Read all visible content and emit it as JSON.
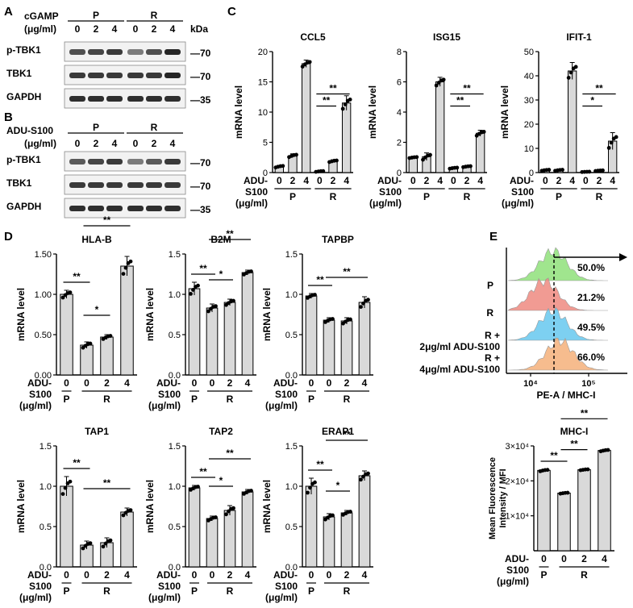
{
  "colors": {
    "bar": "#d9d9d9",
    "blot_bg": "#f2f2f2",
    "band": "#1a1a1a",
    "hist_P": "#8fe07a",
    "hist_R": "#ef8a80",
    "hist_R2": "#66c8ee",
    "hist_R4": "#f5b07a"
  },
  "panel_letters": {
    "A": "A",
    "B": "B",
    "C": "C",
    "D": "D",
    "E": "E"
  },
  "blot_A": {
    "treatment": "cGAMP",
    "unit": "(μg/ml)",
    "kda": "kDa",
    "groups": [
      "P",
      "R"
    ],
    "doses": [
      "0",
      "2",
      "4",
      "0",
      "2",
      "4"
    ],
    "rows": [
      {
        "name": "p-TBK1",
        "marker": "70",
        "intensity": [
          0.75,
          0.8,
          0.85,
          0.55,
          0.75,
          0.95
        ]
      },
      {
        "name": "TBK1",
        "marker": "70",
        "intensity": [
          0.85,
          0.85,
          0.85,
          0.85,
          0.85,
          0.95
        ]
      },
      {
        "name": "GAPDH",
        "marker": "35",
        "intensity": [
          0.9,
          0.9,
          0.9,
          0.9,
          0.9,
          0.9
        ]
      }
    ]
  },
  "blot_B": {
    "treatment": "ADU-S100",
    "unit": "(μg/ml)",
    "groups": [
      "P",
      "R"
    ],
    "doses": [
      "0",
      "2",
      "4",
      "0",
      "2",
      "4"
    ],
    "rows": [
      {
        "name": "p-TBK1",
        "marker": "70",
        "intensity": [
          0.7,
          0.8,
          0.85,
          0.55,
          0.7,
          0.85
        ]
      },
      {
        "name": "TBK1",
        "marker": "70",
        "intensity": [
          0.85,
          0.85,
          0.85,
          0.85,
          0.85,
          0.85
        ]
      },
      {
        "name": "GAPDH",
        "marker": "35",
        "intensity": [
          0.9,
          0.9,
          0.9,
          0.9,
          0.9,
          0.9
        ]
      }
    ]
  },
  "axis_common": {
    "ylabel": "mRNA level",
    "x_prefix": "ADU-",
    "x_prefix2": "S100",
    "x_unit": "(μg/ml)",
    "doses4": [
      "0",
      "0",
      "2",
      "4"
    ],
    "doses6": [
      "0",
      "2",
      "4",
      "0",
      "2",
      "4"
    ],
    "group_P": "P",
    "group_R": "R"
  },
  "chart_data": [
    {
      "type": "bar",
      "title": "CCL5",
      "categories": [
        "P 0",
        "P 2",
        "P 4",
        "R 0",
        "R 2",
        "R 4"
      ],
      "values": [
        1.0,
        2.8,
        18.0,
        0.2,
        1.9,
        11.5
      ],
      "errors": [
        0.2,
        0.3,
        0.6,
        0.1,
        0.2,
        1.2
      ],
      "ylim": [
        0,
        20
      ],
      "yticks": [
        "0",
        "5",
        "10",
        "15",
        "20"
      ],
      "sig": [
        {
          "from": 3,
          "to": 5,
          "label": "**"
        },
        {
          "from": 3,
          "to": 4,
          "label": "**"
        }
      ]
    },
    {
      "type": "bar",
      "title": "ISG15",
      "categories": [
        "P 0",
        "P 2",
        "P 4",
        "R 0",
        "R 2",
        "R 4"
      ],
      "values": [
        1.0,
        1.05,
        6.0,
        0.3,
        0.4,
        2.6
      ],
      "errors": [
        0.05,
        0.25,
        0.3,
        0.05,
        0.05,
        0.2
      ],
      "ylim": [
        0,
        8
      ],
      "yticks": [
        "0",
        "2",
        "4",
        "6",
        "8"
      ],
      "sig": [
        {
          "from": 3,
          "to": 5,
          "label": "**"
        },
        {
          "from": 3,
          "to": 4,
          "label": "**"
        }
      ]
    },
    {
      "type": "bar",
      "title": "IFIT-1",
      "categories": [
        "P 0",
        "P 2",
        "P 4",
        "R 0",
        "R 2",
        "R 4"
      ],
      "values": [
        1.0,
        1.0,
        42.0,
        0.3,
        0.8,
        13.0
      ],
      "errors": [
        0.3,
        0.3,
        3.5,
        0.1,
        0.2,
        3.5
      ],
      "ylim": [
        0,
        50
      ],
      "yticks": [
        "0",
        "10",
        "20",
        "30",
        "40",
        "50"
      ],
      "sig": [
        {
          "from": 3,
          "to": 5,
          "label": "**"
        },
        {
          "from": 3,
          "to": 4,
          "label": "*"
        }
      ]
    },
    {
      "type": "bar",
      "title": "HLA-B",
      "categories": [
        "P 0",
        "R 0",
        "R 2",
        "R 4"
      ],
      "values": [
        1.0,
        0.37,
        0.47,
        1.35
      ],
      "errors": [
        0.05,
        0.04,
        0.03,
        0.12
      ],
      "ylim": [
        0,
        1.5
      ],
      "yticks": [
        "0.00",
        "0.50",
        "1.00",
        "1.50"
      ],
      "sig": [
        {
          "from": 0,
          "to": 1,
          "label": "**"
        },
        {
          "from": 1,
          "to": 2,
          "label": "*"
        },
        {
          "from": 1,
          "to": 3,
          "label": "**"
        }
      ]
    },
    {
      "type": "bar",
      "title": "B2M",
      "categories": [
        "P 0",
        "R 0",
        "R 2",
        "R 4"
      ],
      "values": [
        1.07,
        0.83,
        0.9,
        1.27
      ],
      "errors": [
        0.08,
        0.05,
        0.04,
        0.03
      ],
      "ylim": [
        0,
        1.5
      ],
      "yticks": [
        "0.0",
        "0.5",
        "1.0",
        "1.5"
      ],
      "sig": [
        {
          "from": 0,
          "to": 1,
          "label": "**"
        },
        {
          "from": 1,
          "to": 2,
          "label": "*"
        },
        {
          "from": 1,
          "to": 3,
          "label": "**"
        }
      ]
    },
    {
      "type": "bar",
      "title": "TAPBP",
      "categories": [
        "P 0",
        "R 0",
        "R 2",
        "R 4"
      ],
      "values": [
        0.98,
        0.68,
        0.67,
        0.9
      ],
      "errors": [
        0.03,
        0.03,
        0.04,
        0.07
      ],
      "ylim": [
        0,
        1.5
      ],
      "yticks": [
        "0.0",
        "0.5",
        "1.0",
        "1.5"
      ],
      "sig": [
        {
          "from": 0,
          "to": 1,
          "label": "**"
        },
        {
          "from": 1,
          "to": 3,
          "label": "**"
        }
      ]
    },
    {
      "type": "bar",
      "title": "TAP1",
      "categories": [
        "P 0",
        "R 0",
        "R 2",
        "R 4"
      ],
      "values": [
        1.0,
        0.27,
        0.3,
        0.68
      ],
      "errors": [
        0.12,
        0.05,
        0.06,
        0.05
      ],
      "ylim": [
        0,
        1.5
      ],
      "yticks": [
        "0.0",
        "0.5",
        "1.0",
        "1.5"
      ],
      "sig": [
        {
          "from": 0,
          "to": 1,
          "label": "**"
        },
        {
          "from": 1,
          "to": 3,
          "label": "**"
        }
      ]
    },
    {
      "type": "bar",
      "title": "TAP2",
      "categories": [
        "P 0",
        "R 0",
        "R 2",
        "R 4"
      ],
      "values": [
        0.98,
        0.6,
        0.7,
        0.93
      ],
      "errors": [
        0.03,
        0.03,
        0.06,
        0.03
      ],
      "ylim": [
        0,
        1.5
      ],
      "yticks": [
        "0.0",
        "0.5",
        "1.0",
        "1.5"
      ],
      "sig": [
        {
          "from": 0,
          "to": 1,
          "label": "**"
        },
        {
          "from": 1,
          "to": 2,
          "label": "*"
        },
        {
          "from": 1,
          "to": 3,
          "label": "**"
        }
      ]
    },
    {
      "type": "bar",
      "title": "ERAP1",
      "categories": [
        "P 0",
        "R 0",
        "R 2",
        "R 4"
      ],
      "values": [
        1.0,
        0.62,
        0.67,
        1.13
      ],
      "errors": [
        0.1,
        0.04,
        0.03,
        0.06
      ],
      "ylim": [
        0,
        1.5
      ],
      "yticks": [
        "0.0",
        "0.5",
        "1.0",
        "1.5"
      ],
      "sig": [
        {
          "from": 0,
          "to": 1,
          "label": "**"
        },
        {
          "from": 1,
          "to": 2,
          "label": "*"
        },
        {
          "from": 1,
          "to": 3,
          "label": "**"
        }
      ]
    },
    {
      "type": "bar",
      "title": "MHC-I",
      "ylabel": "Mean Fluorescence Intensity / MFI",
      "categories": [
        "P 0",
        "R 0",
        "R 2",
        "R 4"
      ],
      "values": [
        23000,
        16500,
        23200,
        28700
      ],
      "errors": [
        300,
        200,
        200,
        300
      ],
      "ylim": [
        0,
        30000
      ],
      "yticks": [
        "1×10⁴",
        "2×10⁴",
        "3×10⁴"
      ],
      "ytick_values": [
        10000,
        20000,
        30000
      ],
      "sig": [
        {
          "from": 0,
          "to": 1,
          "label": "**"
        },
        {
          "from": 1,
          "to": 2,
          "label": "**"
        },
        {
          "from": 1,
          "to": 3,
          "label": "**"
        }
      ]
    },
    {
      "type": "area",
      "title": "",
      "xlabel": "PE-A / MHC-I",
      "xticks": [
        "10⁴",
        "10⁵"
      ],
      "series": [
        {
          "name": "P",
          "value": "50.0%"
        },
        {
          "name": "R",
          "value": "21.2%"
        },
        {
          "name": "R + 2μg/ml ADU-S100",
          "value": "49.5%"
        },
        {
          "name": "R + 4μg/ml ADU-S100",
          "value": "66.0%"
        }
      ]
    }
  ]
}
